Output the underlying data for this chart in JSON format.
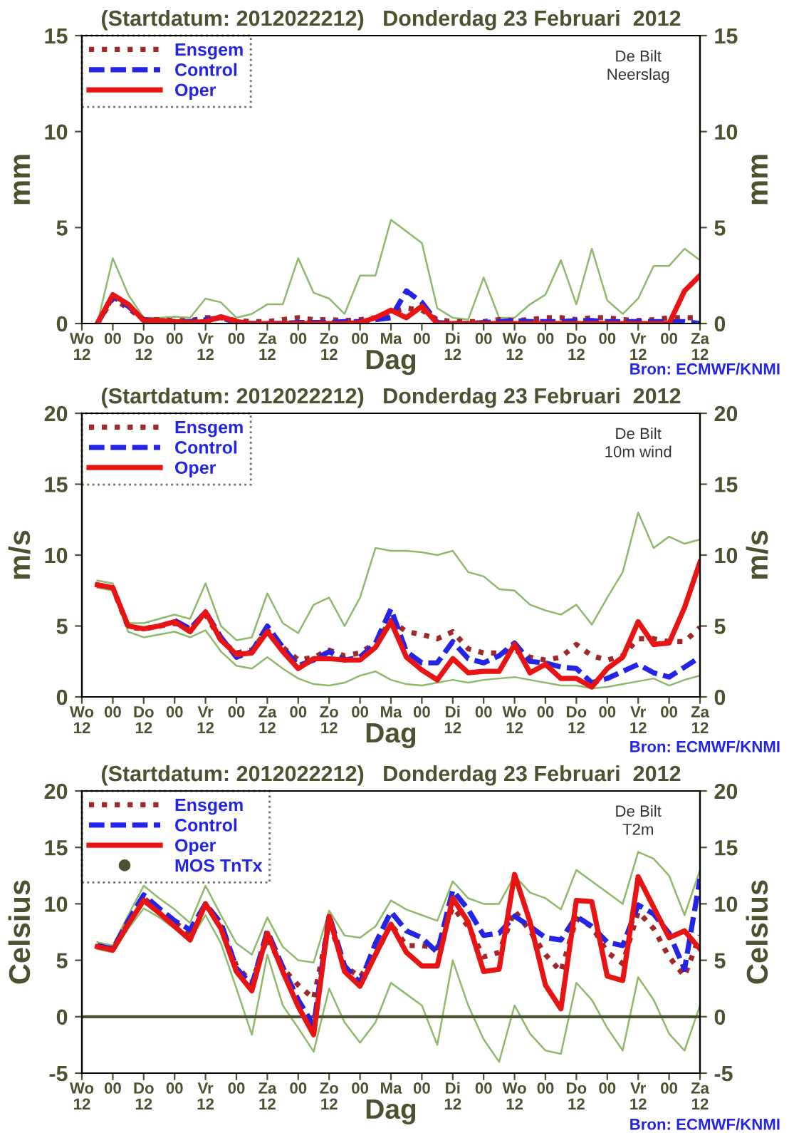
{
  "chart_data": [
    {
      "type": "line",
      "title": "(Startdatum: 2012022212)   Donderdag 23 Februari  2012",
      "xlabel": "Dag",
      "ylabel": "mm",
      "y2label": "mm",
      "annotations": [
        "De Bilt",
        "Neerslag",
        "Bron: ECMWF/KNMI"
      ],
      "categories": [
        "Wo\n12",
        null,
        "00",
        null,
        "Do\n12",
        null,
        "00",
        null,
        "Vr\n12",
        null,
        "00",
        null,
        "Za\n12",
        null,
        "00",
        null,
        "Zo\n12",
        null,
        "00",
        null,
        "Ma",
        null,
        "00",
        null,
        "Di\n12",
        null,
        "00",
        null,
        "Wo\n12",
        null,
        "00",
        null,
        "Do\n12",
        null,
        "00",
        null,
        "Vr\n12",
        null,
        "00",
        null,
        "Za\n12"
      ],
      "ylim": [
        0,
        15
      ],
      "yticks": [
        0,
        5,
        10,
        15
      ],
      "y2lim": [
        0,
        15
      ],
      "y2ticks": [
        0,
        5,
        10,
        15
      ],
      "legend": "top left",
      "grid": false,
      "series": [
        {
          "color": "#8fb96a",
          "line_style": "solid",
          "values": [
            null,
            0,
            3.4,
            1.5,
            0.3,
            0.3,
            0.35,
            0.3,
            1.3,
            1.1,
            0.3,
            0.5,
            1.0,
            1.0,
            3.4,
            1.6,
            1.3,
            0.5,
            2.5,
            2.5,
            5.4,
            4.8,
            4.2,
            0.8,
            0.3,
            0.2,
            2.4,
            0.3,
            0.3,
            1.0,
            1.5,
            3.3,
            1.0,
            3.9,
            1.2,
            0.5,
            1.3,
            3.0,
            3.0,
            3.9,
            3.3
          ]
        },
        {
          "name": "Ensgem",
          "color": "#a02828",
          "line_style": "dotted",
          "values": [
            null,
            0,
            1.3,
            0.8,
            0.2,
            0.2,
            0.15,
            0.15,
            0.3,
            0.3,
            0.15,
            0.1,
            0.1,
            0.2,
            0.3,
            0.2,
            0.2,
            0.15,
            0.2,
            0.3,
            0.6,
            0.8,
            0.7,
            0.2,
            0.1,
            0.1,
            0.1,
            0.2,
            0.15,
            0.2,
            0.3,
            0.3,
            0.2,
            0.3,
            0.3,
            0.2,
            0.15,
            0.2,
            0.3,
            0.3,
            0.3
          ]
        },
        {
          "name": "Control",
          "color": "#2424e6",
          "line_style": "dashed",
          "values": [
            null,
            0,
            1.4,
            0.9,
            0.2,
            0.15,
            0.1,
            0.1,
            0.2,
            0.3,
            0.05,
            0,
            0,
            0,
            0.05,
            0.05,
            0.05,
            0.1,
            0.1,
            0.2,
            0.3,
            1.7,
            1.1,
            0.05,
            0,
            0,
            0.05,
            0.1,
            0.15,
            0.1,
            0.1,
            0.1,
            0.15,
            0.15,
            0.1,
            0.1,
            0.1,
            0.1,
            0.1,
            0.1,
            0
          ]
        },
        {
          "name": "Oper",
          "color": "#e81414",
          "line_style": "solid",
          "values": [
            null,
            0,
            1.5,
            1.0,
            0.15,
            0.15,
            0.1,
            0.05,
            0.1,
            0.35,
            0.1,
            0,
            0,
            0,
            0,
            0,
            0,
            0,
            0.05,
            0.3,
            0.7,
            0.3,
            0.9,
            0,
            0,
            0,
            0,
            0,
            0,
            0,
            0,
            0,
            0,
            0,
            0,
            0,
            0,
            0,
            0,
            1.7,
            2.5
          ]
        }
      ]
    },
    {
      "type": "line",
      "title": "(Startdatum: 2012022212)   Donderdag 23 Februari  2012",
      "xlabel": "Dag",
      "ylabel": "m/s",
      "y2label": "m/s",
      "annotations": [
        "De Bilt",
        "10m wind",
        "Bron: ECMWF/KNMI"
      ],
      "categories": [
        "Wo\n12",
        null,
        "00",
        null,
        "Do\n12",
        null,
        "00",
        null,
        "Vr\n12",
        null,
        "00",
        null,
        "Za\n12",
        null,
        "00",
        null,
        "Zo\n12",
        null,
        "00",
        null,
        "Ma",
        null,
        "00",
        null,
        "Di\n12",
        null,
        "00",
        null,
        "Wo\n12",
        null,
        "00",
        null,
        "Do\n12",
        null,
        "00",
        null,
        "Vr\n12",
        null,
        "00",
        null,
        "Za\n12"
      ],
      "ylim": [
        0,
        20
      ],
      "yticks": [
        0,
        5,
        10,
        15,
        20
      ],
      "y2lim": [
        0,
        20
      ],
      "y2ticks": [
        0,
        5,
        10,
        15,
        20
      ],
      "legend": "top left",
      "grid": false,
      "series": [
        {
          "color": "#8fb96a",
          "line_style": "solid",
          "values": [
            null,
            8.2,
            8.0,
            5.2,
            5.2,
            5.5,
            5.8,
            5.5,
            8.0,
            5.0,
            4.0,
            4.2,
            7.3,
            5.2,
            4.5,
            6.5,
            7.0,
            5.0,
            7.0,
            10.5,
            10.3,
            10.3,
            10.2,
            10.0,
            10.3,
            8.8,
            8.5,
            7.6,
            7.5,
            6.5,
            6.1,
            5.8,
            6.5,
            5.1,
            7.0,
            8.8,
            13.0,
            10.5,
            11.3,
            10.8,
            11.1
          ]
        },
        {
          "color": "#8fb96a",
          "line_style": "solid",
          "values": [
            null,
            7.7,
            7.5,
            4.6,
            4.2,
            4.4,
            4.6,
            4.2,
            4.7,
            3.2,
            2.2,
            2.0,
            2.8,
            2.0,
            1.3,
            0.9,
            0.8,
            1.0,
            1.5,
            1.8,
            1.2,
            0.9,
            0.8,
            1.0,
            1.2,
            1.0,
            1.2,
            1.3,
            1.4,
            1.2,
            1.0,
            0.8,
            0.8,
            0.6,
            0.7,
            0.9,
            1.1,
            1.3,
            0.8,
            1.2,
            1.5
          ]
        },
        {
          "name": "Ensgem",
          "color": "#a02828",
          "line_style": "dotted",
          "values": [
            null,
            7.9,
            7.7,
            4.9,
            4.8,
            5.0,
            5.2,
            4.8,
            5.8,
            4.0,
            3.1,
            3.3,
            4.7,
            3.5,
            2.6,
            2.8,
            3.3,
            2.9,
            3.1,
            3.8,
            5.4,
            4.6,
            4.4,
            4.1,
            4.6,
            3.4,
            3.1,
            3.1,
            3.3,
            2.8,
            2.6,
            2.8,
            3.7,
            2.9,
            2.6,
            2.9,
            4.1,
            4.1,
            3.9,
            3.9,
            4.9
          ]
        },
        {
          "name": "Control",
          "color": "#2424e6",
          "line_style": "dashed",
          "values": [
            null,
            null,
            null,
            null,
            null,
            null,
            5.4,
            4.8,
            6.0,
            4.2,
            2.8,
            3.2,
            5.0,
            3.5,
            2.2,
            2.6,
            3.2,
            2.6,
            2.8,
            3.8,
            6.2,
            3.2,
            2.4,
            2.4,
            3.9,
            2.7,
            2.4,
            2.9,
            3.8,
            2.5,
            2.4,
            2.1,
            2.0,
            1.0,
            1.3,
            1.8,
            2.3,
            1.7,
            1.4,
            2.1,
            2.8
          ]
        },
        {
          "name": "Oper",
          "color": "#e81414",
          "line_style": "solid",
          "values": [
            null,
            7.9,
            7.7,
            5.0,
            4.8,
            5.0,
            5.3,
            4.6,
            6.0,
            4.0,
            3.0,
            3.1,
            4.6,
            3.2,
            2.0,
            2.7,
            2.7,
            2.6,
            2.6,
            3.5,
            5.3,
            2.8,
            1.9,
            1.2,
            2.7,
            1.7,
            1.8,
            1.8,
            3.7,
            1.7,
            2.3,
            1.3,
            1.3,
            0.7,
            2.0,
            2.8,
            5.3,
            3.7,
            3.8,
            6.3,
            9.5
          ]
        }
      ]
    },
    {
      "type": "line",
      "title": "(Startdatum: 2012022212)   Donderdag 23 Februari  2012",
      "xlabel": "Dag",
      "ylabel": "Celsius",
      "y2label": "Celsius",
      "annotations": [
        "De Bilt",
        "T2m",
        "Bron: ECMWF/KNMI",
        "MOS TnTx"
      ],
      "categories": [
        "Wo\n12",
        null,
        "00",
        null,
        "Do\n12",
        null,
        "00",
        null,
        "Vr\n12",
        null,
        "00",
        null,
        "Za\n12",
        null,
        "00",
        null,
        "Zo\n12",
        null,
        "00",
        null,
        "Ma",
        null,
        "00",
        null,
        "Di\n12",
        null,
        "00",
        null,
        "Wo\n12",
        null,
        "00",
        null,
        "Do\n12",
        null,
        "00",
        null,
        "Vr\n12",
        null,
        "00",
        null,
        "Za\n12"
      ],
      "ylim": [
        -5,
        20
      ],
      "yticks": [
        -5,
        0,
        5,
        10,
        15,
        20
      ],
      "y2lim": [
        -5,
        20
      ],
      "y2ticks": [
        -5,
        0,
        5,
        10,
        15,
        20
      ],
      "legend": "top left",
      "grid": false,
      "ref_lines": [
        {
          "axis": "y",
          "value": 0,
          "color": "#4a5230"
        }
      ],
      "series": [
        {
          "color": "#8fb96a",
          "line_style": "solid",
          "values": [
            null,
            6.6,
            6.3,
            9.0,
            11.6,
            10.5,
            9.5,
            8.3,
            11.6,
            9.0,
            6.5,
            5.5,
            8.8,
            6.2,
            5.0,
            4.8,
            9.4,
            7.2,
            7.0,
            8.0,
            10.3,
            9.5,
            9.0,
            8.5,
            12.0,
            10.5,
            10.0,
            10.0,
            12.5,
            11.0,
            10.5,
            9.5,
            13.0,
            12.0,
            11.0,
            10.0,
            14.6,
            14.0,
            12.5,
            9.0,
            13.0
          ]
        },
        {
          "color": "#8fb96a",
          "line_style": "solid",
          "values": [
            null,
            6.0,
            5.7,
            7.8,
            9.6,
            8.8,
            7.8,
            6.8,
            9.0,
            6.5,
            2.5,
            -1.6,
            5.5,
            1.0,
            -1.0,
            -3.1,
            2.5,
            -0.5,
            -2.3,
            -0.5,
            3.0,
            2.0,
            1.0,
            -2.5,
            5.0,
            1.0,
            -2.0,
            -4.0,
            1.0,
            -1.5,
            -3.0,
            -3.3,
            3.0,
            1.5,
            -1.0,
            -3.0,
            3.5,
            1.5,
            -1.5,
            -3.0,
            1.0
          ]
        },
        {
          "name": "Ensgem",
          "color": "#a02828",
          "line_style": "dotted",
          "values": [
            null,
            6.3,
            6.0,
            8.3,
            10.5,
            9.4,
            8.4,
            7.3,
            9.9,
            8.0,
            4.5,
            3.0,
            7.0,
            4.3,
            2.8,
            1.6,
            8.3,
            4.5,
            3.5,
            5.5,
            8.2,
            6.3,
            6.3,
            6.1,
            9.7,
            8.0,
            5.3,
            5.7,
            9.4,
            7.6,
            5.5,
            4.0,
            8.7,
            8.0,
            5.7,
            4.7,
            9.3,
            7.8,
            5.3,
            3.6,
            7.2
          ]
        },
        {
          "name": "Control",
          "color": "#2424e6",
          "line_style": "dashed",
          "values": [
            null,
            6.3,
            6.0,
            8.5,
            10.8,
            9.6,
            8.5,
            7.7,
            10.0,
            8.3,
            4.3,
            2.8,
            7.6,
            4.4,
            1.5,
            -0.8,
            9.0,
            4.5,
            3.0,
            6.5,
            9.3,
            7.6,
            7.0,
            5.7,
            11.2,
            9.5,
            7.2,
            7.4,
            8.9,
            8.0,
            7.0,
            6.8,
            8.9,
            8.0,
            6.6,
            6.3,
            9.9,
            9.1,
            7.4,
            4.2,
            12.2
          ]
        },
        {
          "name": "Oper",
          "color": "#e81414",
          "line_style": "solid",
          "values": [
            null,
            6.2,
            5.9,
            8.2,
            10.3,
            9.2,
            8.0,
            6.8,
            10.0,
            7.8,
            4.0,
            2.3,
            7.4,
            4.0,
            0.9,
            -1.6,
            8.9,
            4.0,
            2.7,
            5.5,
            8.2,
            5.7,
            4.5,
            4.5,
            10.5,
            8.4,
            4.0,
            4.2,
            12.6,
            8.4,
            2.8,
            0.7,
            10.3,
            10.2,
            3.6,
            3.2,
            12.4,
            9.7,
            7.0,
            7.6,
            6.0
          ]
        }
      ]
    }
  ]
}
